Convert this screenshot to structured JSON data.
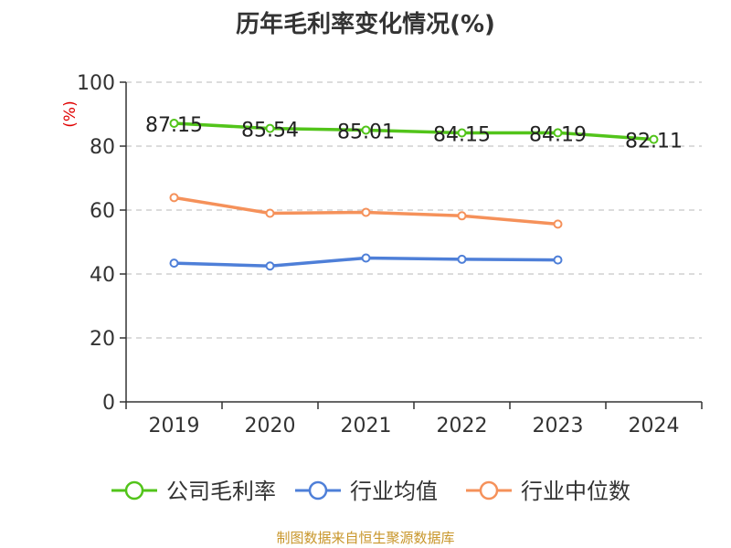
{
  "chart_data": {
    "type": "line",
    "title": "历年毛利率变化情况(%)",
    "ylabel": "(%)",
    "xlabel": "",
    "categories": [
      "2019",
      "2020",
      "2021",
      "2022",
      "2023",
      "2024"
    ],
    "ylim": [
      0,
      100
    ],
    "yticks": [
      0,
      20,
      40,
      60,
      80,
      100
    ],
    "grid": true,
    "legend_position": "bottom",
    "series": [
      {
        "name": "公司毛利率",
        "color": "#52c41a",
        "labels": true,
        "values": [
          87.15,
          85.54,
          85.01,
          84.15,
          84.19,
          82.11
        ]
      },
      {
        "name": "行业均值",
        "color": "#4e7fd8",
        "labels": false,
        "values": [
          43.4,
          42.5,
          45.0,
          44.6,
          44.4,
          null
        ]
      },
      {
        "name": "行业中位数",
        "color": "#f5915a",
        "labels": false,
        "values": [
          63.9,
          59.0,
          59.3,
          58.2,
          55.6,
          null
        ]
      }
    ]
  },
  "source_note": "制图数据来自恒生聚源数据库"
}
